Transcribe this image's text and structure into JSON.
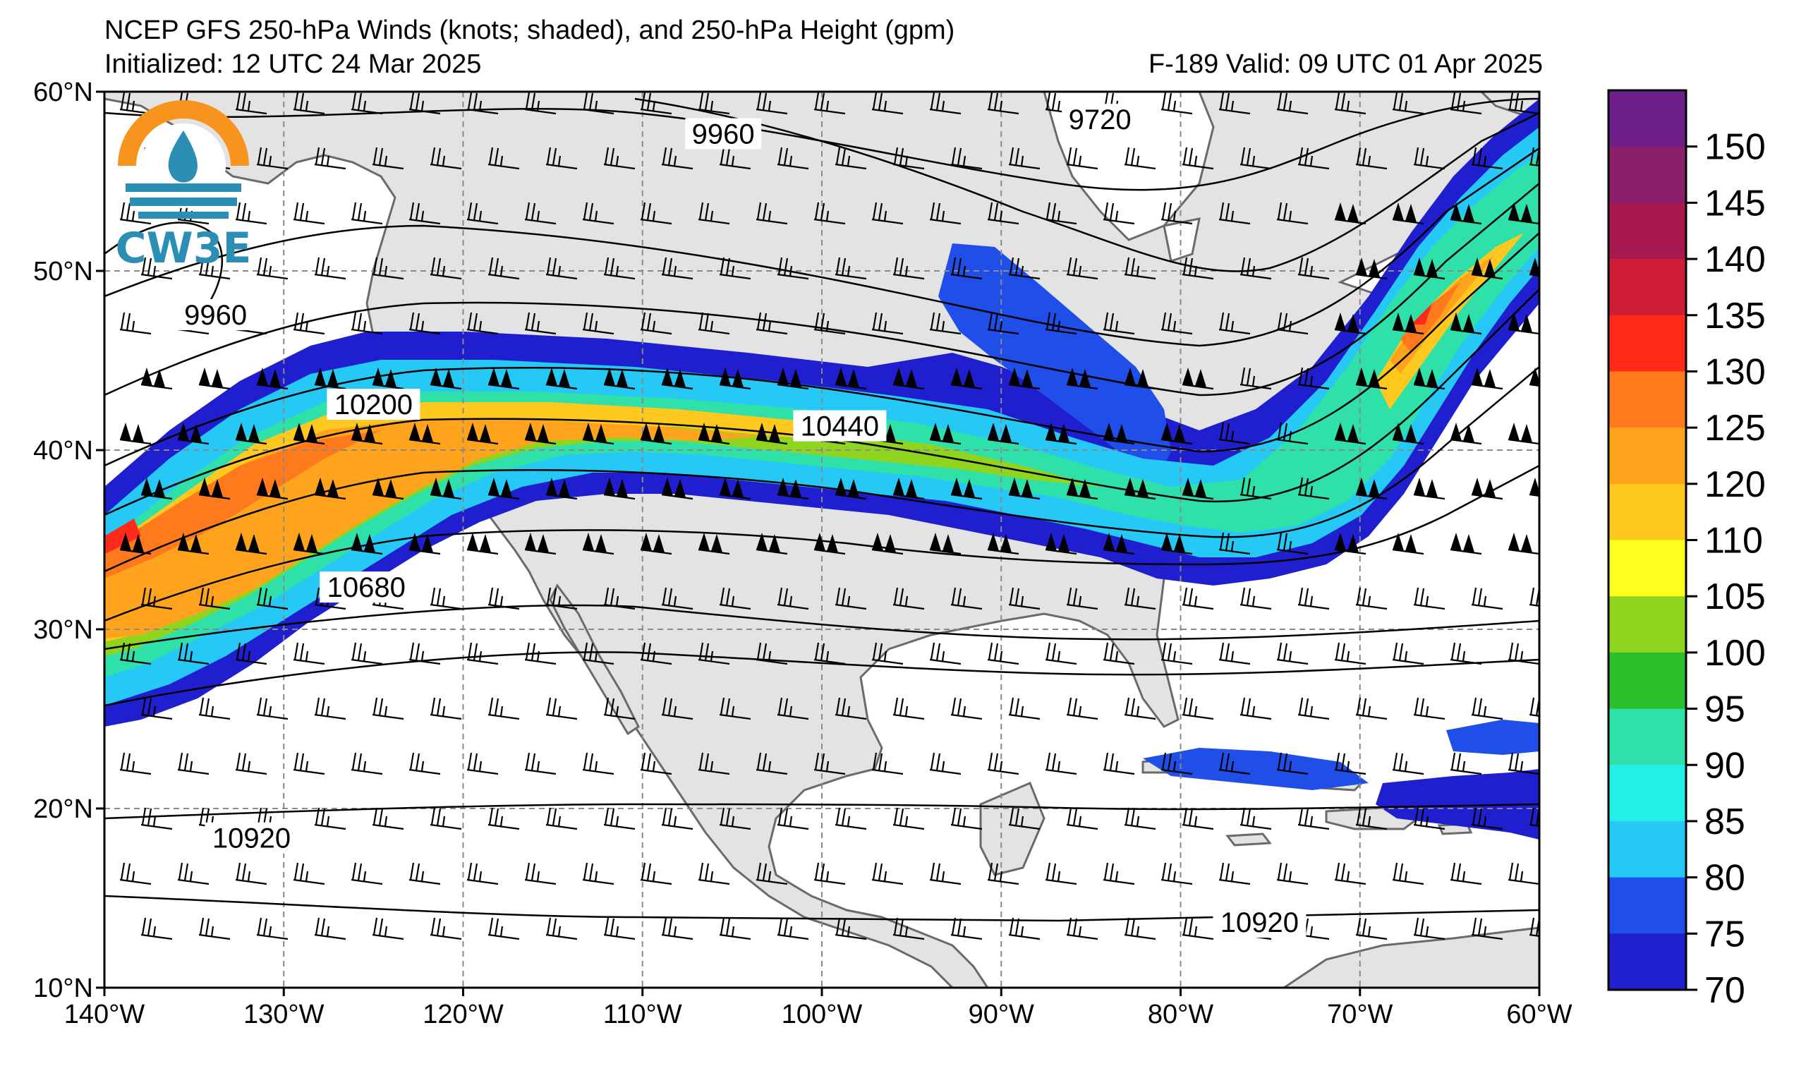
{
  "header": {
    "title": "NCEP GFS 250-hPa Winds (knots; shaded), and 250-hPa Height (gpm)",
    "initialized": "Initialized: 12 UTC 24 Mar 2025",
    "valid": "F-189  Valid: 09 UTC 01 Apr 2025"
  },
  "logo": {
    "text": "CW3E",
    "colors": [
      "#f7941d",
      "#2b8fb5"
    ]
  },
  "map": {
    "lat_ticks": [
      "60°N",
      "50°N",
      "40°N",
      "30°N",
      "20°N",
      "10°N"
    ],
    "lon_ticks": [
      "140°W",
      "130°W",
      "120°W",
      "110°W",
      "100°W",
      "90°W",
      "80°W",
      "70°W",
      "60°W"
    ],
    "lat_values": [
      60,
      50,
      40,
      30,
      20,
      10
    ],
    "lon_values": [
      -140,
      -130,
      -120,
      -110,
      -100,
      -90,
      -80,
      -70,
      -60
    ],
    "land_color": "#e3e3e3",
    "gridline": "dashed gray"
  },
  "contours": {
    "labels": [
      {
        "text": "9960",
        "lon": -105.5,
        "lat": 57.5
      },
      {
        "text": "9720",
        "lon": -84.5,
        "lat": 58.3
      },
      {
        "text": "9960",
        "lon": -133.8,
        "lat": 47.4
      },
      {
        "text": "10200",
        "lon": -125.0,
        "lat": 42.4
      },
      {
        "text": "10440",
        "lon": -99.0,
        "lat": 41.2
      },
      {
        "text": "10680",
        "lon": -125.4,
        "lat": 32.2
      },
      {
        "text": "10920",
        "lon": -131.8,
        "lat": 18.2
      },
      {
        "text": "10920",
        "lon": -75.6,
        "lat": 13.5
      }
    ]
  },
  "colorbar": {
    "ticks": [
      "150",
      "145",
      "140",
      "135",
      "130",
      "125",
      "120",
      "110",
      "105",
      "100",
      "95",
      "90",
      "85",
      "80",
      "75",
      "70"
    ],
    "colors": [
      "#6e1f8a",
      "#8a1f6e",
      "#a8194f",
      "#d11e38",
      "#ff2a1a",
      "#ff7a1c",
      "#ffa31c",
      "#ffc81e",
      "#ffff1e",
      "#8fd41e",
      "#2bbf2b",
      "#2fe0a8",
      "#23f0e8",
      "#26c8f5",
      "#1f4fe8",
      "#1f1fd0"
    ]
  }
}
